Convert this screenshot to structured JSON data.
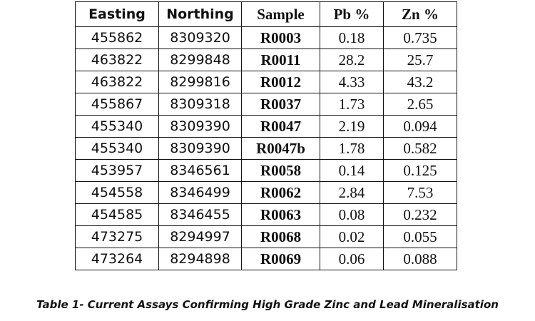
{
  "table": {
    "header": [
      "Easting",
      "Northing",
      "Sample",
      "Pb %",
      "Zn %"
    ],
    "rows": [
      [
        455862,
        8309320,
        "R0003",
        0.18,
        0.735
      ],
      [
        463822,
        8299848,
        "R0011",
        28.2,
        25.7
      ],
      [
        463822,
        8299816,
        "R0012",
        4.33,
        43.2
      ],
      [
        455867,
        8309318,
        "R0037",
        1.73,
        2.65
      ],
      [
        455340,
        8309390,
        "R0047",
        2.19,
        0.094
      ],
      [
        455340,
        8309390,
        "R0047b",
        1.78,
        0.582
      ],
      [
        453957,
        8346561,
        "R0058",
        0.14,
        0.125
      ],
      [
        454558,
        8346499,
        "R0062",
        2.84,
        7.53
      ],
      [
        454585,
        8346455,
        "R0063",
        0.08,
        0.232
      ],
      [
        473275,
        8294997,
        "R0068",
        0.02,
        0.055
      ],
      [
        473264,
        8294898,
        "R0069",
        0.06,
        0.088
      ]
    ]
  },
  "caption": "Table 1- Current Assays Confirming High Grade Zinc and Lead Mineralisation"
}
